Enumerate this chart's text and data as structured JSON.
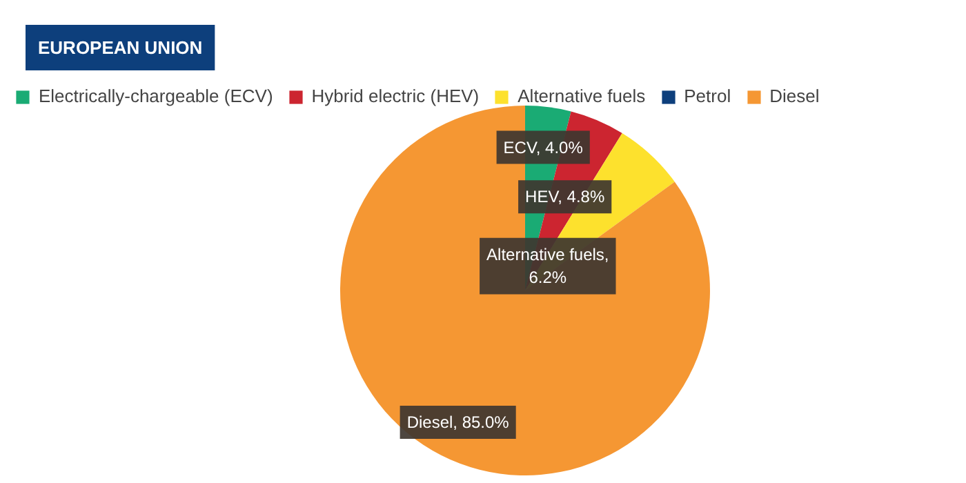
{
  "chart_data": {
    "type": "pie",
    "title": "EUROPEAN UNION",
    "categories": [
      "Electrically-chargeable (ECV)",
      "Hybrid electric (HEV)",
      "Alternative fuels",
      "Petrol",
      "Diesel"
    ],
    "values": [
      4.0,
      4.8,
      6.2,
      0,
      85.0
    ],
    "colors": [
      "#1aab74",
      "#cc2530",
      "#fde12d",
      "#0d3f7c",
      "#f59733"
    ],
    "value_labels": [
      "ECV, 4.0%",
      "HEV, 4.8%",
      "Alternative fuels,\n6.2%",
      null,
      "Diesel, 85.0%"
    ],
    "legend": "top"
  }
}
